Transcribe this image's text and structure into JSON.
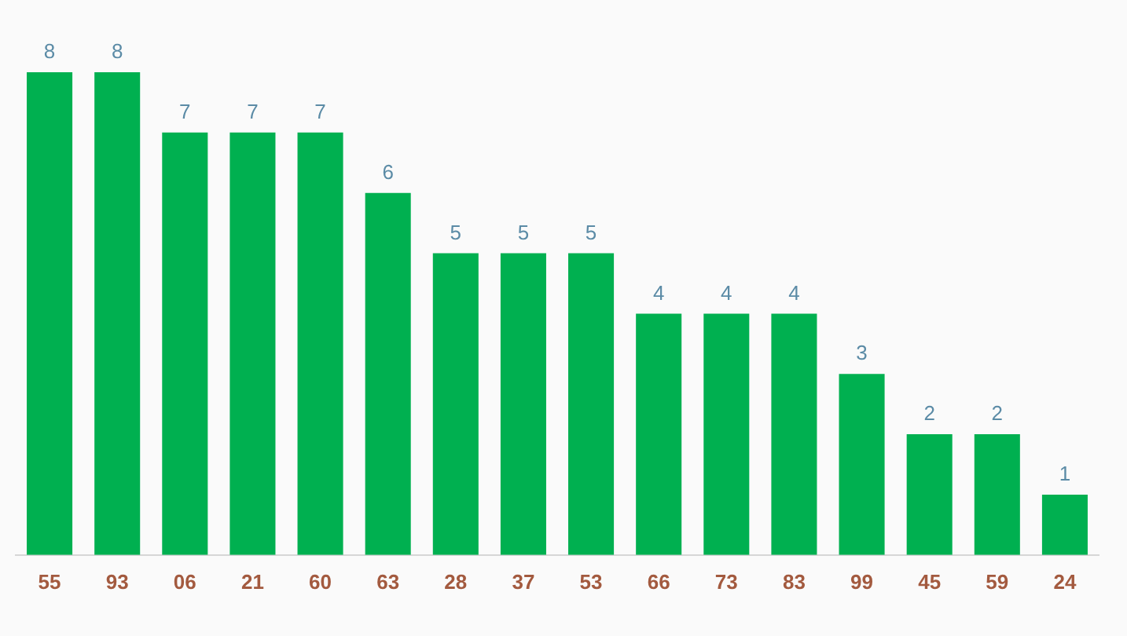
{
  "chart_data": {
    "type": "bar",
    "categories": [
      "55",
      "93",
      "06",
      "21",
      "60",
      "63",
      "28",
      "37",
      "53",
      "66",
      "73",
      "83",
      "99",
      "45",
      "59",
      "24"
    ],
    "values": [
      8,
      8,
      7,
      7,
      7,
      6,
      5,
      5,
      5,
      4,
      4,
      4,
      3,
      2,
      2,
      1
    ],
    "color": "#00b050",
    "data_labels": true
  }
}
